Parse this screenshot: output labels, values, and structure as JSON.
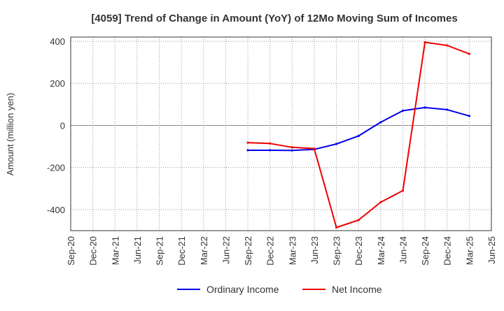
{
  "chart_data": {
    "type": "line",
    "title": "[4059]  Trend of Change in Amount (YoY) of 12Mo Moving Sum of Incomes",
    "ylabel": "Amount (million yen)",
    "xlabel": "",
    "ylim": [
      -500,
      420
    ],
    "yticks": [
      400,
      200,
      0,
      -200,
      -400
    ],
    "ytick_labels": [
      "400",
      "200",
      "0",
      "-200",
      "-400"
    ],
    "x_categories": [
      "Sep-20",
      "Dec-20",
      "Mar-21",
      "Jun-21",
      "Sep-21",
      "Dec-21",
      "Mar-22",
      "Jun-22",
      "Sep-22",
      "Dec-22",
      "Mar-23",
      "Jun-23",
      "Sep-23",
      "Dec-23",
      "Mar-24",
      "Jun-24",
      "Sep-24",
      "Dec-24",
      "Mar-25",
      "Jun-25"
    ],
    "grid": true,
    "legend_position": "bottom",
    "series": [
      {
        "name": "Ordinary Income",
        "color": "#0000ee",
        "values": [
          null,
          null,
          null,
          null,
          null,
          null,
          null,
          null,
          -118,
          -118,
          -119,
          -114,
          -88,
          -50,
          15,
          70,
          85,
          75,
          45,
          null
        ]
      },
      {
        "name": "Net Income",
        "color": "#ee0000",
        "values": [
          null,
          null,
          null,
          null,
          null,
          null,
          null,
          null,
          -82,
          -86,
          -104,
          -110,
          -485,
          -450,
          -365,
          -310,
          395,
          380,
          340,
          null
        ]
      }
    ]
  }
}
